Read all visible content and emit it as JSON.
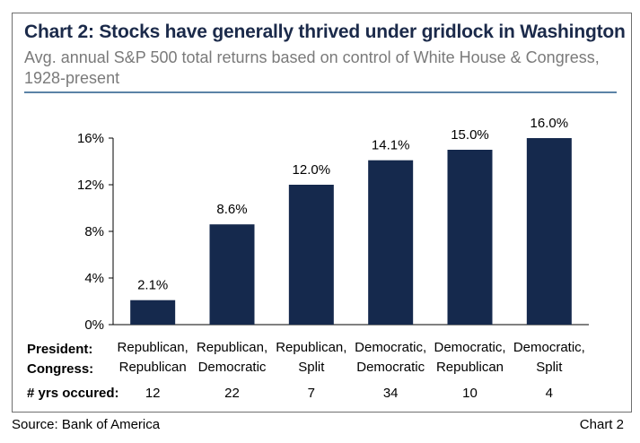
{
  "title": "Chart 2: Stocks have generally thrived under gridlock in Washington",
  "subtitle": "Avg. annual S&P 500 total returns based on control of White House & Congress, 1928-present",
  "footer": {
    "source": "Source: Bank of America",
    "chart_ref": "Chart 2"
  },
  "colors": {
    "bar": "#15294d",
    "rule": "#5b83a6",
    "title": "#1b2a4a",
    "subtitle": "#7a7a7a"
  },
  "chart_data": {
    "type": "bar",
    "title": "Chart 2: Stocks have generally thrived under gridlock in Washington",
    "subtitle": "Avg. annual S&P 500 total returns based on control of White House & Congress, 1928-present",
    "ylim": [
      0,
      16
    ],
    "yticks": [
      0,
      4,
      8,
      12,
      16
    ],
    "ytick_labels": [
      "0%",
      "4%",
      "8%",
      "12%",
      "16%"
    ],
    "grid": false,
    "row_headers": [
      "President:",
      "Congress:",
      "# yrs occured:"
    ],
    "categories": [
      {
        "president": "Republican,",
        "congress": "Republican",
        "years": "12"
      },
      {
        "president": "Republican,",
        "congress": "Democratic",
        "years": "22"
      },
      {
        "president": "Republican,",
        "congress": "Split",
        "years": "7"
      },
      {
        "president": "Democratic,",
        "congress": "Democratic",
        "years": "34"
      },
      {
        "president": "Democratic,",
        "congress": "Republican",
        "years": "10"
      },
      {
        "president": "Democratic,",
        "congress": "Split",
        "years": "4"
      }
    ],
    "values": [
      2.1,
      8.6,
      12.0,
      14.1,
      15.0,
      16.0
    ],
    "value_labels": [
      "2.1%",
      "8.6%",
      "12.0%",
      "14.1%",
      "15.0%",
      "16.0%"
    ]
  }
}
